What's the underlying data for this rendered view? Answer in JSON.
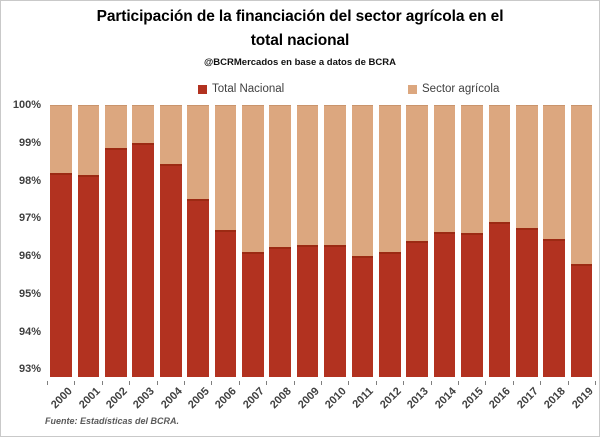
{
  "title_lines": [
    "Participación de la financiación del sector agrícola en el",
    "total nacional"
  ],
  "subtitle": "@BCRMercados en base a datos de BCRA",
  "source": "Fuente: Estadísticas del BCRA.",
  "colors": {
    "total_nacional": "#b23220",
    "total_nacional_edge": "#9c2a13",
    "sector_agricola": "#dca77f",
    "sector_agricola_edge": "#c9946c",
    "axis_text": "#404040",
    "source_text": "#595959"
  },
  "chart_data": {
    "type": "bar",
    "stacked": true,
    "stack_total_pct": 100,
    "title": "Participación de la financiación del sector agrícola en el total nacional",
    "subtitle": "@BCRMercados en base a datos de BCRA",
    "categories": [
      "2000",
      "2001",
      "2002",
      "2003",
      "2004",
      "2005",
      "2006",
      "2007",
      "2008",
      "2009",
      "2010",
      "2011",
      "2012",
      "2013",
      "2014",
      "2015",
      "2016",
      "2017",
      "2018",
      "2019"
    ],
    "series": [
      {
        "name": "Total Nacional",
        "color": "#b23220",
        "values": [
          98.2,
          98.15,
          98.85,
          99.0,
          98.45,
          97.5,
          96.7,
          96.1,
          96.25,
          96.3,
          96.3,
          96.0,
          96.1,
          96.4,
          96.65,
          96.6,
          96.9,
          96.75,
          96.45,
          95.8
        ]
      },
      {
        "name": "Sector agrícola",
        "color": "#dca77f",
        "values": [
          1.8,
          1.85,
          1.15,
          1.0,
          1.55,
          2.5,
          3.3,
          3.9,
          3.75,
          3.7,
          3.7,
          4.0,
          3.9,
          3.6,
          3.35,
          3.4,
          3.1,
          3.25,
          3.55,
          4.2
        ]
      }
    ],
    "xlabel": "",
    "ylabel": "",
    "ylim": [
      93,
      100
    ],
    "y_ticks": [
      "100%",
      "99%",
      "98%",
      "97%",
      "96%",
      "95%",
      "94%",
      "93%"
    ],
    "x_tick_rotation_deg": 45,
    "gridlines": false,
    "legend_position": "top",
    "source": "Fuente: Estadísticas del BCRA."
  }
}
